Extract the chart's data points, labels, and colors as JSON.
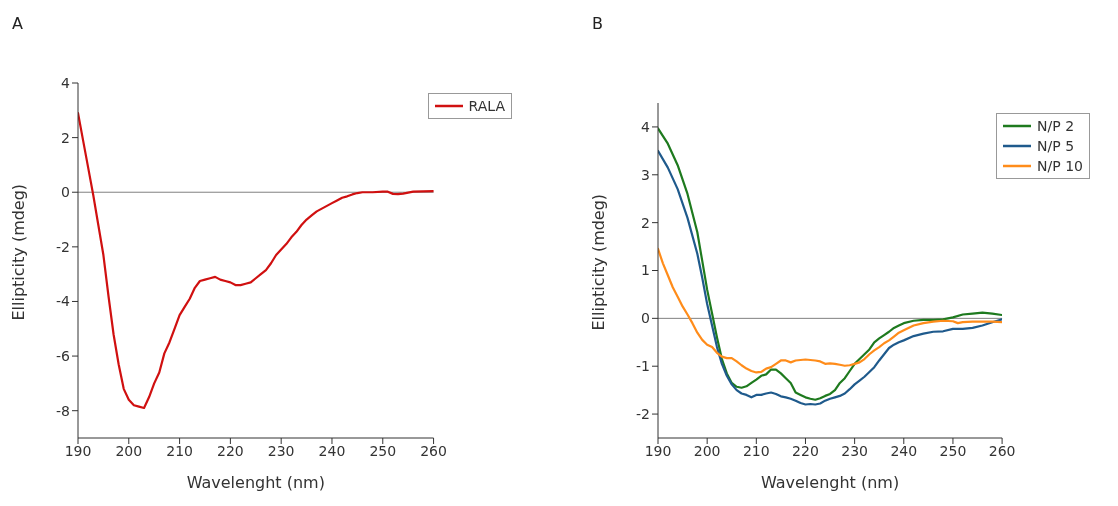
{
  "chart_data": [
    {
      "type": "line",
      "title": "A",
      "xlabel": "Wavelenght (nm)",
      "ylabel": "Ellipticity (mdeg)",
      "xlim": [
        190,
        260
      ],
      "xticks": [
        190,
        200,
        210,
        220,
        230,
        240,
        250,
        260
      ],
      "ylim": [
        -9,
        4
      ],
      "yticks": [
        -8,
        -6,
        -4,
        -2,
        0,
        2,
        4
      ],
      "grid": false,
      "legend": "top right",
      "marker": "none",
      "line_style": "solid",
      "ref_lines": [
        {
          "axis": "y",
          "value": 0,
          "color": "#808080"
        }
      ],
      "series": [
        {
          "name": "RALA",
          "color": "#d01010",
          "x": [
            190,
            191,
            192,
            193,
            194,
            195,
            196,
            197,
            198,
            199,
            200,
            201,
            202,
            203,
            204,
            205,
            206,
            207,
            208,
            209,
            210,
            211,
            212,
            213,
            214,
            215,
            216,
            217,
            218,
            219,
            220,
            221,
            222,
            223,
            224,
            225,
            226,
            227,
            228,
            229,
            230,
            231,
            232,
            233,
            234,
            235,
            236,
            237,
            238,
            239,
            240,
            241,
            242,
            243,
            244,
            245,
            246,
            248,
            250,
            251,
            252,
            253,
            254,
            256,
            258,
            260
          ],
          "values": [
            2.9,
            1.9,
            0.9,
            -0.1,
            -1.2,
            -2.3,
            -3.8,
            -5.2,
            -6.3,
            -7.2,
            -7.6,
            -7.8,
            -7.85,
            -7.9,
            -7.5,
            -7.0,
            -6.6,
            -5.9,
            -5.5,
            -5.0,
            -4.5,
            -4.2,
            -3.9,
            -3.5,
            -3.25,
            -3.2,
            -3.15,
            -3.1,
            -3.2,
            -3.25,
            -3.3,
            -3.4,
            -3.4,
            -3.35,
            -3.3,
            -3.15,
            -3.0,
            -2.85,
            -2.6,
            -2.3,
            -2.1,
            -1.9,
            -1.65,
            -1.45,
            -1.2,
            -1.0,
            -0.85,
            -0.7,
            -0.6,
            -0.5,
            -0.4,
            -0.3,
            -0.2,
            -0.15,
            -0.08,
            -0.03,
            0,
            0,
            0.02,
            0.02,
            -0.06,
            -0.07,
            -0.05,
            0.02,
            0.03,
            0.04
          ]
        }
      ]
    },
    {
      "type": "line",
      "title": "B",
      "xlabel": "Wavelenght (nm)",
      "ylabel": "Ellipticity (mdeg)",
      "xlim": [
        190,
        260
      ],
      "xticks": [
        190,
        200,
        210,
        220,
        230,
        240,
        250,
        260
      ],
      "ylim": [
        -2.5,
        4.5
      ],
      "yticks": [
        -2,
        -1,
        0,
        1,
        2,
        3,
        4
      ],
      "grid": false,
      "legend": "top right",
      "marker": "none",
      "line_style": "solid",
      "ref_lines": [
        {
          "axis": "y",
          "value": 0,
          "color": "#808080"
        }
      ],
      "series": [
        {
          "name": "N/P 2",
          "color": "#1e7a1e",
          "x": [
            190,
            192,
            194,
            196,
            198,
            199,
            200,
            201,
            202,
            203,
            204,
            205,
            206,
            207,
            208,
            209,
            210,
            211,
            212,
            213,
            214,
            215,
            216,
            217,
            218,
            219,
            220,
            221,
            222,
            223,
            224,
            225,
            226,
            227,
            228,
            229,
            230,
            231,
            232,
            233,
            234,
            235,
            236,
            237,
            238,
            239,
            240,
            242,
            244,
            246,
            248,
            250,
            252,
            254,
            256,
            258,
            260
          ],
          "values": [
            3.97,
            3.65,
            3.2,
            2.6,
            1.8,
            1.2,
            0.6,
            0.1,
            -0.4,
            -0.85,
            -1.15,
            -1.35,
            -1.43,
            -1.45,
            -1.42,
            -1.35,
            -1.28,
            -1.2,
            -1.17,
            -1.07,
            -1.07,
            -1.15,
            -1.25,
            -1.35,
            -1.55,
            -1.6,
            -1.65,
            -1.68,
            -1.7,
            -1.67,
            -1.62,
            -1.58,
            -1.5,
            -1.35,
            -1.25,
            -1.1,
            -0.95,
            -0.85,
            -0.75,
            -0.65,
            -0.5,
            -0.42,
            -0.35,
            -0.28,
            -0.2,
            -0.15,
            -0.1,
            -0.05,
            -0.03,
            -0.03,
            -0.02,
            0.02,
            0.08,
            0.1,
            0.12,
            0.1,
            0.07
          ]
        },
        {
          "name": "N/P 5",
          "color": "#1f5a8c",
          "x": [
            190,
            192,
            194,
            196,
            198,
            199,
            200,
            201,
            202,
            203,
            204,
            205,
            206,
            207,
            208,
            209,
            210,
            211,
            212,
            213,
            214,
            215,
            216,
            217,
            218,
            219,
            220,
            221,
            222,
            223,
            224,
            225,
            226,
            227,
            228,
            229,
            230,
            231,
            232,
            233,
            234,
            235,
            236,
            237,
            238,
            239,
            240,
            242,
            244,
            246,
            248,
            250,
            252,
            254,
            256,
            258,
            260
          ],
          "values": [
            3.5,
            3.15,
            2.7,
            2.1,
            1.35,
            0.85,
            0.3,
            -0.15,
            -0.6,
            -0.95,
            -1.2,
            -1.38,
            -1.5,
            -1.57,
            -1.6,
            -1.65,
            -1.6,
            -1.6,
            -1.57,
            -1.55,
            -1.58,
            -1.63,
            -1.65,
            -1.68,
            -1.72,
            -1.77,
            -1.8,
            -1.79,
            -1.8,
            -1.78,
            -1.72,
            -1.68,
            -1.65,
            -1.62,
            -1.57,
            -1.48,
            -1.38,
            -1.3,
            -1.22,
            -1.12,
            -1.02,
            -0.88,
            -0.75,
            -0.62,
            -0.55,
            -0.5,
            -0.46,
            -0.37,
            -0.32,
            -0.28,
            -0.27,
            -0.22,
            -0.22,
            -0.2,
            -0.15,
            -0.08,
            -0.02
          ]
        },
        {
          "name": "N/P 10",
          "color": "#ff8c1a",
          "x": [
            190,
            191,
            192,
            193,
            194,
            195,
            196,
            197,
            198,
            199,
            200,
            201,
            202,
            203,
            204,
            205,
            206,
            207,
            208,
            209,
            210,
            211,
            212,
            213,
            214,
            215,
            216,
            217,
            218,
            219,
            220,
            221,
            222,
            223,
            224,
            225,
            226,
            227,
            228,
            229,
            230,
            231,
            232,
            233,
            234,
            235,
            236,
            237,
            238,
            239,
            240,
            242,
            244,
            246,
            248,
            250,
            251,
            252,
            254,
            256,
            258,
            260
          ],
          "values": [
            1.45,
            1.15,
            0.9,
            0.65,
            0.45,
            0.25,
            0.08,
            -0.1,
            -0.3,
            -0.45,
            -0.55,
            -0.6,
            -0.72,
            -0.8,
            -0.83,
            -0.83,
            -0.9,
            -0.98,
            -1.05,
            -1.1,
            -1.13,
            -1.12,
            -1.05,
            -1.02,
            -0.95,
            -0.88,
            -0.88,
            -0.92,
            -0.88,
            -0.87,
            -0.86,
            -0.87,
            -0.88,
            -0.9,
            -0.95,
            -0.94,
            -0.95,
            -0.97,
            -0.99,
            -0.98,
            -0.95,
            -0.92,
            -0.85,
            -0.75,
            -0.67,
            -0.6,
            -0.52,
            -0.46,
            -0.38,
            -0.3,
            -0.25,
            -0.15,
            -0.1,
            -0.07,
            -0.05,
            -0.06,
            -0.1,
            -0.08,
            -0.07,
            -0.07,
            -0.07,
            -0.08
          ]
        }
      ]
    }
  ]
}
